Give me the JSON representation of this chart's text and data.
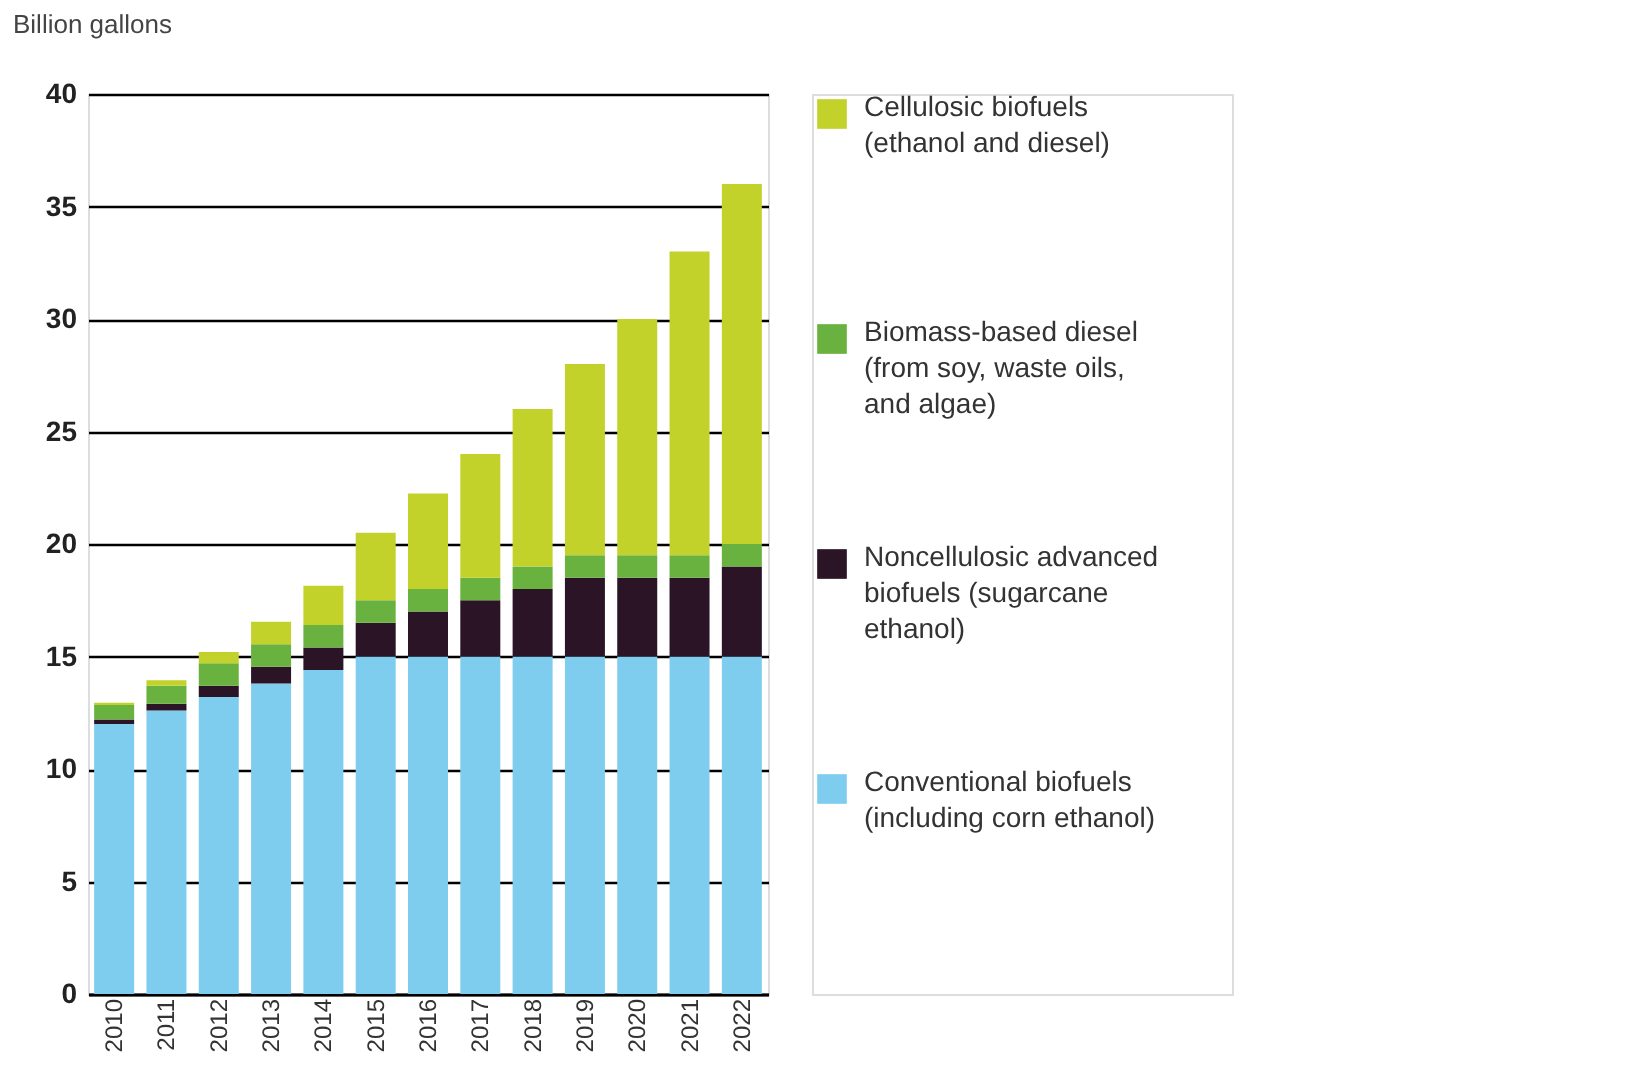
{
  "chart_data": {
    "type": "bar",
    "stacked": true,
    "ylabel": "Billion gallons",
    "categories": [
      "2010",
      "2011",
      "2012",
      "2013",
      "2014",
      "2015",
      "2016",
      "2017",
      "2018",
      "2019",
      "2020",
      "2021",
      "2022"
    ],
    "series": [
      {
        "name": "Conventional biofuels (including corn ethanol)",
        "color": "#7fcdee",
        "values": [
          12.0,
          12.6,
          13.2,
          13.8,
          14.4,
          15.0,
          15.0,
          15.0,
          15.0,
          15.0,
          15.0,
          15.0,
          15.0
        ]
      },
      {
        "name": "Noncellulosic advanced biofuels (sugarcane ethanol)",
        "color": "#2a1426",
        "values": [
          0.2,
          0.3,
          0.5,
          0.75,
          1.0,
          1.5,
          2.0,
          2.5,
          3.0,
          3.5,
          3.5,
          3.5,
          4.0
        ]
      },
      {
        "name": "Biomass-based diesel (from soy, waste oils, and algae)",
        "color": "#6ab23f",
        "values": [
          0.65,
          0.8,
          1.0,
          1.0,
          1.0,
          1.0,
          1.0,
          1.0,
          1.0,
          1.0,
          1.0,
          1.0,
          1.0
        ]
      },
      {
        "name": "Cellulosic biofuels (ethanol and diesel)",
        "color": "#c3d22b",
        "values": [
          0.1,
          0.25,
          0.5,
          1.0,
          1.75,
          3.0,
          4.25,
          5.5,
          7.0,
          8.5,
          10.5,
          13.5,
          16.0
        ]
      }
    ],
    "ylim": [
      0,
      40
    ],
    "yticks": [
      0,
      5,
      10,
      15,
      20,
      25,
      30,
      35,
      40
    ],
    "grid": "y",
    "legend": "right"
  }
}
